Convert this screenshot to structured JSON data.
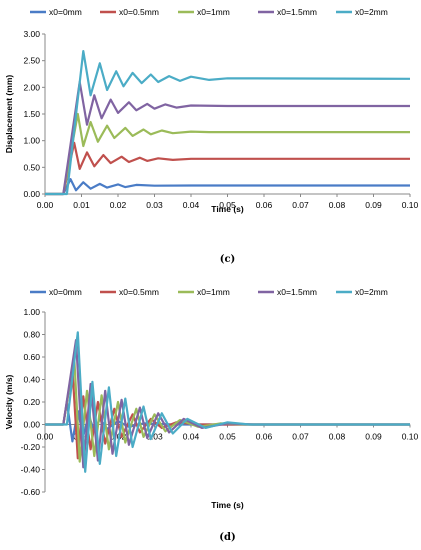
{
  "colors": {
    "x0=0mm": "#4a7cc6",
    "x0=0.5mm": "#c0504d",
    "x0=1mm": "#9bbb59",
    "x0=1.5mm": "#8064a2",
    "x0=2mm": "#4bacc6"
  },
  "chart_data": [
    {
      "type": "line",
      "panel_label": "(c)",
      "xlabel": "Time (s)",
      "ylabel": "Displacement  (mm)",
      "xlim": [
        0,
        0.1
      ],
      "ylim": [
        0,
        3.0
      ],
      "xticks": [
        "0.00",
        "0.01",
        "0.02",
        "0.03",
        "0.04",
        "0.05",
        "0.06",
        "0.07",
        "0.08",
        "0.09",
        "0.10"
      ],
      "yticks": [
        "0.00",
        "0.50",
        "1.00",
        "1.50",
        "2.00",
        "2.50",
        "3.00"
      ],
      "legend_position": "top",
      "series": [
        {
          "name": "x0=0mm",
          "values": [
            [
              0,
              0
            ],
            [
              0.005,
              0
            ],
            [
              0.007,
              0.28
            ],
            [
              0.0085,
              0.07
            ],
            [
              0.0105,
              0.22
            ],
            [
              0.0125,
              0.1
            ],
            [
              0.015,
              0.19
            ],
            [
              0.017,
              0.12
            ],
            [
              0.02,
              0.18
            ],
            [
              0.022,
              0.13
            ],
            [
              0.025,
              0.17
            ],
            [
              0.03,
              0.155
            ],
            [
              0.04,
              0.16
            ],
            [
              0.1,
              0.16
            ]
          ]
        },
        {
          "name": "x0=0.5mm",
          "values": [
            [
              0,
              0
            ],
            [
              0.005,
              0
            ],
            [
              0.008,
              0.96
            ],
            [
              0.0095,
              0.47
            ],
            [
              0.0115,
              0.78
            ],
            [
              0.0135,
              0.52
            ],
            [
              0.016,
              0.73
            ],
            [
              0.018,
              0.58
            ],
            [
              0.021,
              0.7
            ],
            [
              0.023,
              0.6
            ],
            [
              0.026,
              0.68
            ],
            [
              0.028,
              0.62
            ],
            [
              0.031,
              0.67
            ],
            [
              0.035,
              0.64
            ],
            [
              0.04,
              0.66
            ],
            [
              0.1,
              0.66
            ]
          ]
        },
        {
          "name": "x0=1mm",
          "values": [
            [
              0,
              0
            ],
            [
              0.005,
              0
            ],
            [
              0.009,
              1.5
            ],
            [
              0.0105,
              0.9
            ],
            [
              0.0125,
              1.35
            ],
            [
              0.0145,
              0.98
            ],
            [
              0.017,
              1.28
            ],
            [
              0.019,
              1.05
            ],
            [
              0.022,
              1.24
            ],
            [
              0.024,
              1.09
            ],
            [
              0.027,
              1.21
            ],
            [
              0.029,
              1.12
            ],
            [
              0.032,
              1.19
            ],
            [
              0.035,
              1.14
            ],
            [
              0.04,
              1.17
            ],
            [
              0.045,
              1.16
            ],
            [
              0.1,
              1.16
            ]
          ]
        },
        {
          "name": "x0=1.5mm",
          "values": [
            [
              0,
              0
            ],
            [
              0.005,
              0
            ],
            [
              0.0095,
              2.1
            ],
            [
              0.0115,
              1.3
            ],
            [
              0.0135,
              1.85
            ],
            [
              0.0155,
              1.42
            ],
            [
              0.018,
              1.77
            ],
            [
              0.02,
              1.52
            ],
            [
              0.023,
              1.72
            ],
            [
              0.025,
              1.57
            ],
            [
              0.028,
              1.69
            ],
            [
              0.03,
              1.6
            ],
            [
              0.033,
              1.68
            ],
            [
              0.036,
              1.62
            ],
            [
              0.04,
              1.66
            ],
            [
              0.05,
              1.65
            ],
            [
              0.1,
              1.65
            ]
          ]
        },
        {
          "name": "x0=2mm",
          "values": [
            [
              0,
              0
            ],
            [
              0.006,
              0
            ],
            [
              0.0105,
              2.68
            ],
            [
              0.0125,
              1.85
            ],
            [
              0.015,
              2.45
            ],
            [
              0.017,
              1.95
            ],
            [
              0.0195,
              2.3
            ],
            [
              0.0215,
              2.02
            ],
            [
              0.024,
              2.27
            ],
            [
              0.0265,
              2.08
            ],
            [
              0.029,
              2.24
            ],
            [
              0.031,
              2.1
            ],
            [
              0.034,
              2.21
            ],
            [
              0.037,
              2.12
            ],
            [
              0.04,
              2.2
            ],
            [
              0.045,
              2.14
            ],
            [
              0.05,
              2.17
            ],
            [
              0.1,
              2.16
            ]
          ]
        }
      ]
    },
    {
      "type": "line",
      "panel_label": "(d)",
      "xlabel": "Time (s)",
      "ylabel": "Velocity (m/s)",
      "xlim": [
        0,
        0.1
      ],
      "ylim": [
        -0.6,
        1.0
      ],
      "xticks": [
        "0.00",
        "0.01",
        "0.02",
        "0.03",
        "0.04",
        "0.05",
        "0.06",
        "0.07",
        "0.08",
        "0.09",
        "0.10"
      ],
      "yticks": [
        "-0.60",
        "-0.40",
        "-0.20",
        "0.00",
        "0.20",
        "0.40",
        "0.60",
        "0.80",
        "1.00"
      ],
      "legend_position": "top",
      "series": [
        {
          "name": "x0=0mm",
          "values": [
            [
              0,
              0
            ],
            [
              0.005,
              0
            ],
            [
              0.006,
              0.2
            ],
            [
              0.0075,
              -0.15
            ],
            [
              0.009,
              0.12
            ],
            [
              0.0105,
              -0.1
            ],
            [
              0.012,
              0.08
            ],
            [
              0.0135,
              -0.06
            ],
            [
              0.015,
              0.05
            ],
            [
              0.017,
              -0.04
            ],
            [
              0.02,
              0.03
            ],
            [
              0.023,
              -0.02
            ],
            [
              0.027,
              0.01
            ],
            [
              0.035,
              0
            ],
            [
              0.1,
              0
            ]
          ]
        },
        {
          "name": "x0=0.5mm",
          "values": [
            [
              0,
              0
            ],
            [
              0.005,
              0
            ],
            [
              0.0075,
              0.5
            ],
            [
              0.009,
              -0.3
            ],
            [
              0.0105,
              0.25
            ],
            [
              0.0125,
              -0.22
            ],
            [
              0.0145,
              0.2
            ],
            [
              0.0165,
              -0.17
            ],
            [
              0.019,
              0.14
            ],
            [
              0.021,
              -0.11
            ],
            [
              0.024,
              0.09
            ],
            [
              0.026,
              -0.07
            ],
            [
              0.029,
              0.05
            ],
            [
              0.032,
              -0.03
            ],
            [
              0.036,
              0.02
            ],
            [
              0.042,
              0
            ],
            [
              0.1,
              0
            ]
          ]
        },
        {
          "name": "x0=1mm",
          "values": [
            [
              0,
              0
            ],
            [
              0.005,
              0
            ],
            [
              0.008,
              0.6
            ],
            [
              0.0095,
              -0.33
            ],
            [
              0.0115,
              0.3
            ],
            [
              0.0135,
              -0.28
            ],
            [
              0.0155,
              0.26
            ],
            [
              0.0175,
              -0.22
            ],
            [
              0.02,
              0.2
            ],
            [
              0.022,
              -0.16
            ],
            [
              0.025,
              0.14
            ],
            [
              0.027,
              -0.11
            ],
            [
              0.03,
              0.09
            ],
            [
              0.033,
              -0.06
            ],
            [
              0.037,
              0.04
            ],
            [
              0.042,
              -0.02
            ],
            [
              0.048,
              0.01
            ],
            [
              0.055,
              0
            ],
            [
              0.1,
              0
            ]
          ]
        },
        {
          "name": "x0=1.5mm",
          "values": [
            [
              0,
              0
            ],
            [
              0.005,
              0
            ],
            [
              0.0085,
              0.75
            ],
            [
              0.0105,
              -0.38
            ],
            [
              0.0125,
              0.36
            ],
            [
              0.0145,
              -0.32
            ],
            [
              0.0165,
              0.3
            ],
            [
              0.0185,
              -0.26
            ],
            [
              0.021,
              0.22
            ],
            [
              0.023,
              -0.18
            ],
            [
              0.026,
              0.15
            ],
            [
              0.028,
              -0.12
            ],
            [
              0.031,
              0.1
            ],
            [
              0.034,
              -0.07
            ],
            [
              0.038,
              0.05
            ],
            [
              0.043,
              -0.03
            ],
            [
              0.05,
              0.01
            ],
            [
              0.057,
              0
            ],
            [
              0.1,
              0
            ]
          ]
        },
        {
          "name": "x0=2mm",
          "values": [
            [
              0,
              0
            ],
            [
              0.006,
              0
            ],
            [
              0.009,
              0.82
            ],
            [
              0.011,
              -0.42
            ],
            [
              0.013,
              0.38
            ],
            [
              0.015,
              -0.35
            ],
            [
              0.0175,
              0.33
            ],
            [
              0.0195,
              -0.28
            ],
            [
              0.022,
              0.23
            ],
            [
              0.024,
              -0.2
            ],
            [
              0.027,
              0.16
            ],
            [
              0.029,
              -0.13
            ],
            [
              0.032,
              0.1
            ],
            [
              0.035,
              -0.08
            ],
            [
              0.039,
              0.05
            ],
            [
              0.044,
              -0.03
            ],
            [
              0.05,
              0.02
            ],
            [
              0.056,
              0
            ],
            [
              0.1,
              0
            ]
          ]
        }
      ]
    }
  ]
}
